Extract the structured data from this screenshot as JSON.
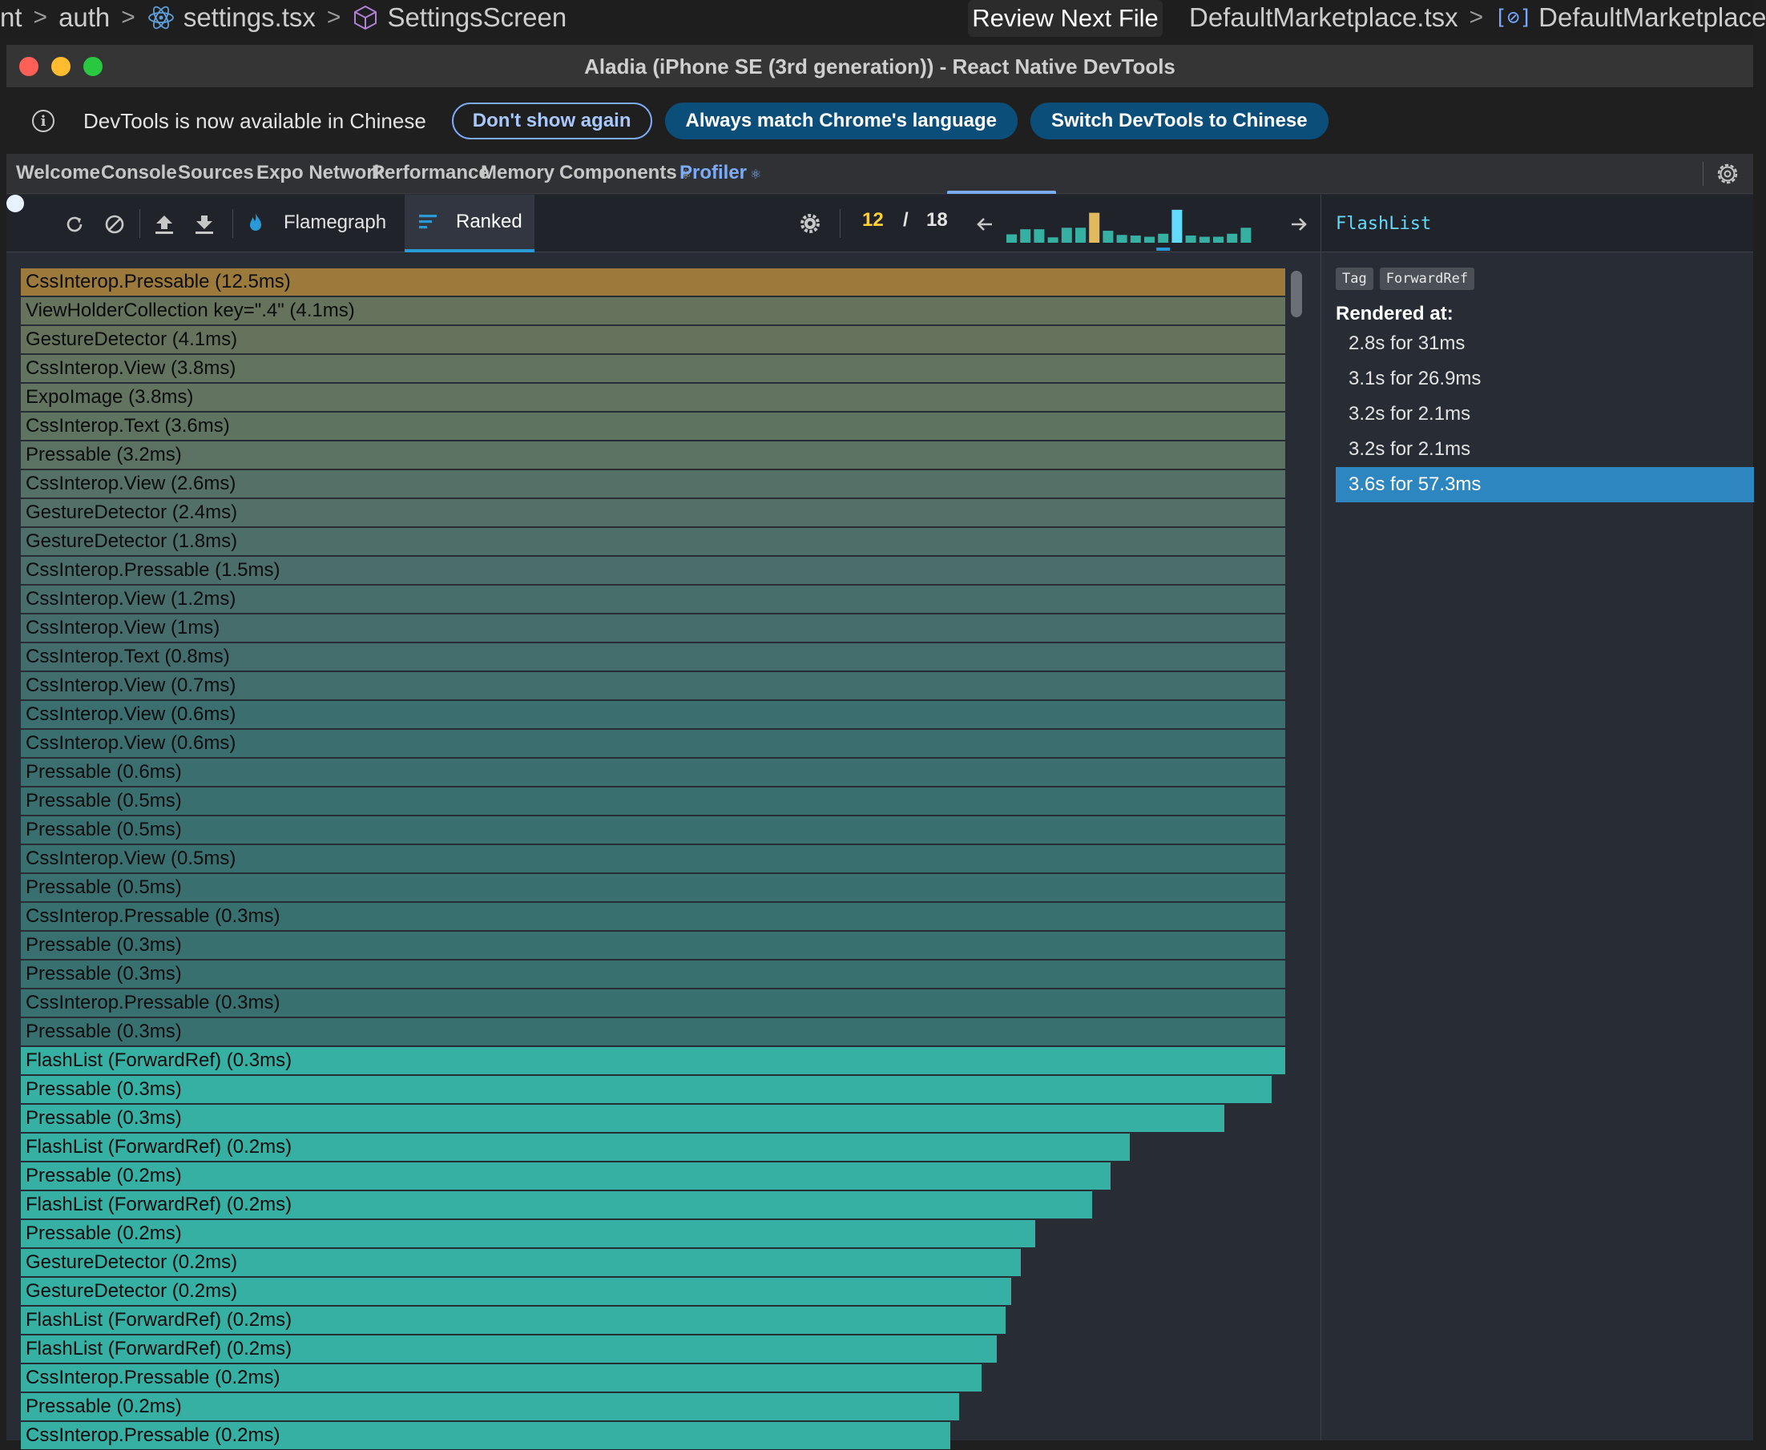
{
  "editor": {
    "crumb_partial": "nt",
    "crumb_auth": "auth",
    "crumb_file": "settings.tsx",
    "crumb_symbol": "SettingsScreen",
    "review_button": "Review Next File",
    "right_file": "DefaultMarketplace.tsx",
    "right_symbol": "DefaultMarketplace",
    "bracket_icon_glyph": "[⊘]"
  },
  "window": {
    "title": "Aladia (iPhone SE (3rd generation)) - React Native DevTools"
  },
  "infobar": {
    "icon_glyph": "i",
    "message": "DevTools is now available in Chinese",
    "dont_show": "Don't show again",
    "match_language": "Always match Chrome's language",
    "switch_language": "Switch DevTools to Chinese"
  },
  "tabs": [
    {
      "label": "Welcome",
      "active": false
    },
    {
      "label": "Console",
      "active": false
    },
    {
      "label": "Sources",
      "active": false
    },
    {
      "label": "Expo Network",
      "active": false
    },
    {
      "label": "Performance",
      "active": false
    },
    {
      "label": "Memory",
      "active": false
    },
    {
      "label": "Components",
      "active": false,
      "atom": "⚛"
    },
    {
      "label": "Profiler",
      "active": true,
      "atom": "⚛"
    }
  ],
  "toolbar": {
    "flamegraph": "Flamegraph",
    "ranked": "Ranked",
    "commit_current": "12",
    "commit_separator": "/",
    "commit_total": "18",
    "commit_bars": [
      0.28,
      0.45,
      0.45,
      0.18,
      0.5,
      0.5,
      1.0,
      0.4,
      0.26,
      0.24,
      0.2,
      0.3,
      1.1,
      0.24,
      0.2,
      0.2,
      0.3,
      0.5
    ],
    "commit_bar_colors": [
      "#37b0a4",
      "#37b0a4",
      "#37b0a4",
      "#37b0a4",
      "#37b0a4",
      "#37b0a4",
      "#e2b95c",
      "#37b0a4",
      "#37b0a4",
      "#37b0a4",
      "#37b0a4",
      "#37b0a4",
      "#61dafb",
      "#37b0a4",
      "#37b0a4",
      "#37b0a4",
      "#37b0a4",
      "#37b0a4"
    ],
    "selected_commit_index": 11
  },
  "ranked": [
    {
      "label": "CssInterop.Pressable (12.5ms)",
      "width": 1.0,
      "color": "#9c7a3c"
    },
    {
      "label": "ViewHolderCollection key=\".4\" (4.1ms)",
      "width": 1.0,
      "color": "#65735c"
    },
    {
      "label": "GestureDetector (4.1ms)",
      "width": 1.0,
      "color": "#65735c"
    },
    {
      "label": "CssInterop.View (3.8ms)",
      "width": 1.0,
      "color": "#62735f"
    },
    {
      "label": "ExpoImage (3.8ms)",
      "width": 1.0,
      "color": "#62735f"
    },
    {
      "label": "CssInterop.Text (3.6ms)",
      "width": 1.0,
      "color": "#5f7361"
    },
    {
      "label": "Pressable (3.2ms)",
      "width": 1.0,
      "color": "#5b7263"
    },
    {
      "label": "CssInterop.View (2.6ms)",
      "width": 1.0,
      "color": "#557066"
    },
    {
      "label": "GestureDetector (2.4ms)",
      "width": 1.0,
      "color": "#527067"
    },
    {
      "label": "GestureDetector (1.8ms)",
      "width": 1.0,
      "color": "#4e6f69"
    },
    {
      "label": "CssInterop.Pressable (1.5ms)",
      "width": 1.0,
      "color": "#4b6e6a"
    },
    {
      "label": "CssInterop.View (1.2ms)",
      "width": 1.0,
      "color": "#486e6b"
    },
    {
      "label": "CssInterop.View (1ms)",
      "width": 1.0,
      "color": "#466d6c"
    },
    {
      "label": "CssInterop.Text (0.8ms)",
      "width": 1.0,
      "color": "#436d6c"
    },
    {
      "label": "CssInterop.View (0.7ms)",
      "width": 1.0,
      "color": "#426d6d"
    },
    {
      "label": "CssInterop.View (0.6ms)",
      "width": 1.0,
      "color": "#3b6f6f"
    },
    {
      "label": "CssInterop.View (0.6ms)",
      "width": 1.0,
      "color": "#3b6f6f"
    },
    {
      "label": "Pressable (0.6ms)",
      "width": 1.0,
      "color": "#3b6f6f"
    },
    {
      "label": "Pressable (0.5ms)",
      "width": 1.0,
      "color": "#3a6f6f"
    },
    {
      "label": "Pressable (0.5ms)",
      "width": 1.0,
      "color": "#3a6f6f"
    },
    {
      "label": "CssInterop.View (0.5ms)",
      "width": 1.0,
      "color": "#3a6f6f"
    },
    {
      "label": "Pressable (0.5ms)",
      "width": 1.0,
      "color": "#3a6f6f"
    },
    {
      "label": "CssInterop.Pressable (0.3ms)",
      "width": 1.0,
      "color": "#387070"
    },
    {
      "label": "Pressable (0.3ms)",
      "width": 1.0,
      "color": "#387070"
    },
    {
      "label": "Pressable (0.3ms)",
      "width": 1.0,
      "color": "#387070"
    },
    {
      "label": "CssInterop.Pressable (0.3ms)",
      "width": 1.0,
      "color": "#387070"
    },
    {
      "label": "Pressable (0.3ms)",
      "width": 1.0,
      "color": "#387070"
    },
    {
      "label": "FlashList (ForwardRef) (0.3ms)",
      "width": 1.0,
      "color": "#37b0a4"
    },
    {
      "label": "Pressable (0.3ms)",
      "width": 0.989,
      "color": "#37b0a4"
    },
    {
      "label": "Pressable (0.3ms)",
      "width": 0.952,
      "color": "#37b0a4"
    },
    {
      "label": "FlashList (ForwardRef) (0.2ms)",
      "width": 0.877,
      "color": "#37b0a4"
    },
    {
      "label": "Pressable (0.2ms)",
      "width": 0.862,
      "color": "#37b0a4"
    },
    {
      "label": "FlashList (ForwardRef) (0.2ms)",
      "width": 0.847,
      "color": "#37b0a4"
    },
    {
      "label": "Pressable (0.2ms)",
      "width": 0.802,
      "color": "#37b0a4"
    },
    {
      "label": "GestureDetector (0.2ms)",
      "width": 0.791,
      "color": "#37b0a4"
    },
    {
      "label": "GestureDetector (0.2ms)",
      "width": 0.783,
      "color": "#37b0a4"
    },
    {
      "label": "FlashList (ForwardRef) (0.2ms)",
      "width": 0.779,
      "color": "#37b0a4"
    },
    {
      "label": "FlashList (ForwardRef) (0.2ms)",
      "width": 0.772,
      "color": "#37b0a4"
    },
    {
      "label": "CssInterop.Pressable (0.2ms)",
      "width": 0.76,
      "color": "#37b0a4"
    },
    {
      "label": "Pressable (0.2ms)",
      "width": 0.742,
      "color": "#37b0a4"
    },
    {
      "label": "CssInterop.Pressable (0.2ms)",
      "width": 0.735,
      "color": "#37b0a4"
    }
  ],
  "side": {
    "component_name": "FlashList",
    "badges": [
      "Tag",
      "ForwardRef"
    ],
    "rendered_at_label": "Rendered at:",
    "renders": [
      {
        "label": "2.8s for 31ms",
        "selected": false
      },
      {
        "label": "3.1s for 26.9ms",
        "selected": false
      },
      {
        "label": "3.2s for 2.1ms",
        "selected": false
      },
      {
        "label": "3.2s for 2.1ms",
        "selected": false
      },
      {
        "label": "3.6s for 57.3ms",
        "selected": true
      }
    ]
  }
}
